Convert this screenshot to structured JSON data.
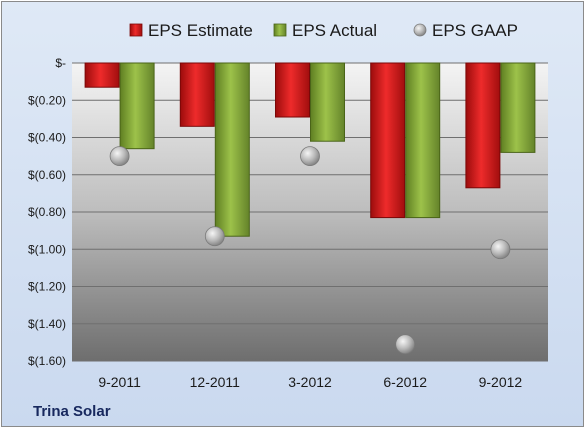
{
  "company": "Trina Solar",
  "chart_data": {
    "type": "bar",
    "title": "",
    "xlabel": "",
    "ylabel": "",
    "categories": [
      "9-2011",
      "12-2011",
      "3-2012",
      "6-2012",
      "9-2012"
    ],
    "series": [
      {
        "name": "EPS Estimate",
        "kind": "bar",
        "color": "#e02020",
        "values": [
          -0.13,
          -0.34,
          -0.29,
          -0.83,
          -0.67
        ]
      },
      {
        "name": "EPS Actual",
        "kind": "bar",
        "color": "#8fb33a",
        "values": [
          -0.46,
          -0.93,
          -0.42,
          -0.83,
          -0.48
        ]
      },
      {
        "name": "EPS GAAP",
        "kind": "marker",
        "color": "#b5b5b5",
        "values": [
          -0.5,
          -0.93,
          -0.5,
          -1.51,
          -1.0
        ]
      }
    ],
    "ylim": [
      -1.6,
      0
    ],
    "yticks": [
      0,
      -0.2,
      -0.4,
      -0.6,
      -0.8,
      -1.0,
      -1.2,
      -1.4,
      -1.6
    ],
    "ytick_labels": [
      "$-",
      "$(0.20)",
      "$(0.40)",
      "$(0.60)",
      "$(0.80)",
      "$(1.00)",
      "$(1.20)",
      "$(1.40)",
      "$(1.60)"
    ],
    "grid": true,
    "legend_position": "top"
  }
}
